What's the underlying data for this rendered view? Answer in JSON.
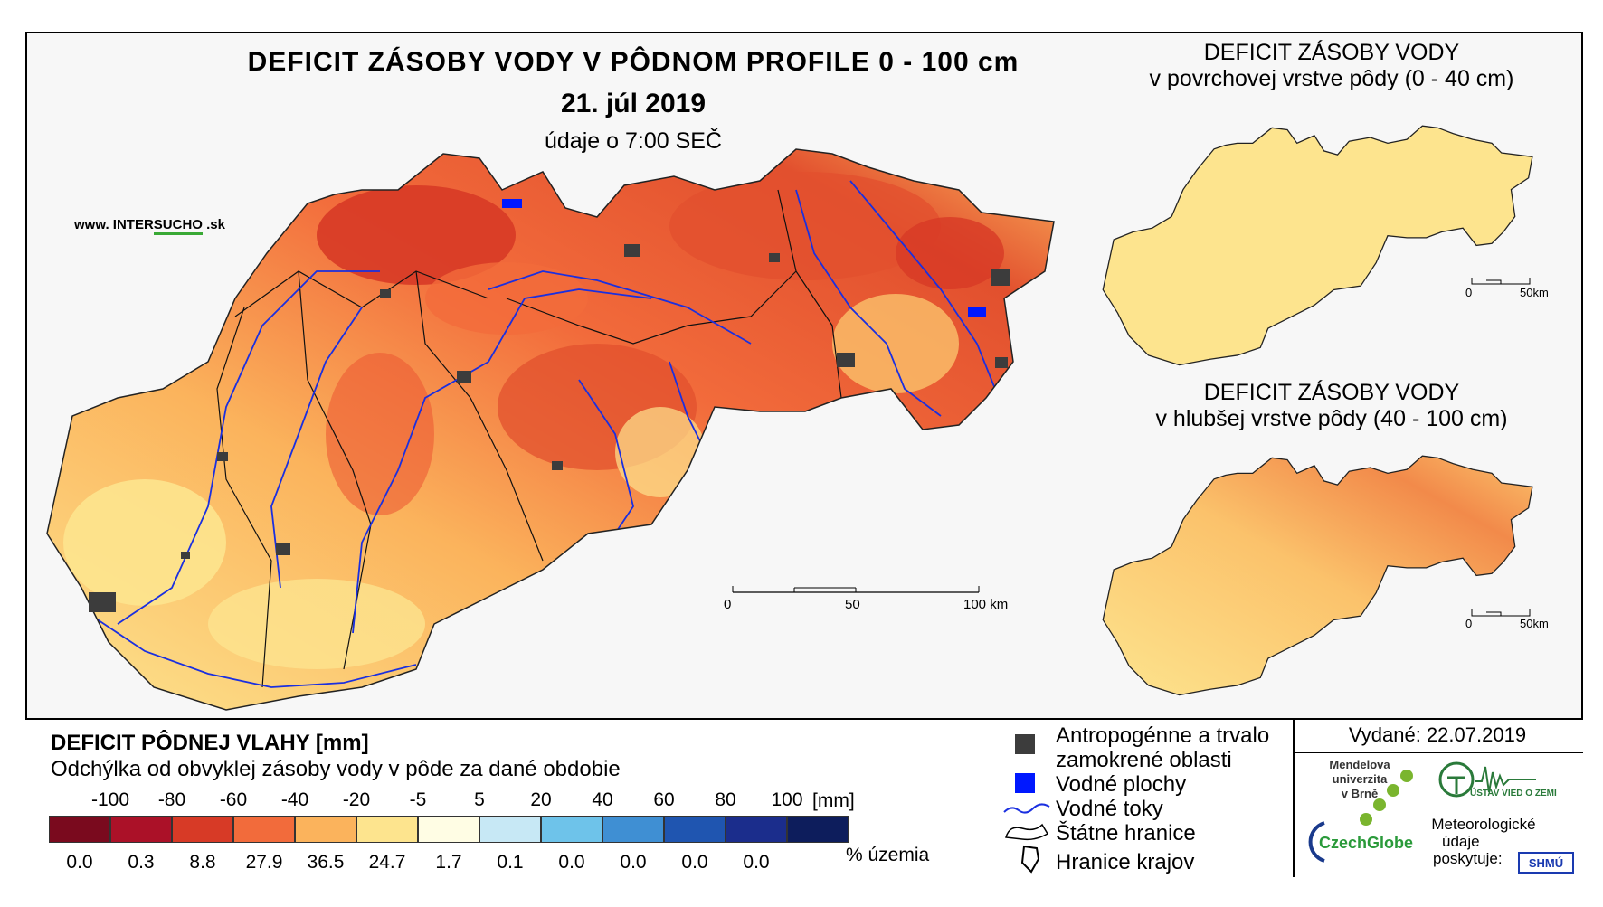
{
  "map": {
    "title": "DEFICIT ZÁSOBY VODY V PÔDNOM PROFILE 0 - 100 cm",
    "date": "21. júl 2019",
    "subtitle": "údaje o 7:00 SEČ",
    "website_prefix": "www. INTER",
    "website_accent": "SUCHO",
    "website_suffix": " .sk",
    "scale": {
      "labels": [
        "0",
        "50",
        "100 km"
      ]
    }
  },
  "insets": [
    {
      "title_line1": "DEFICIT ZÁSOBY VODY",
      "title_line2": "v povrchovej vrstve pôdy (0 - 40 cm)",
      "scale_labels": [
        "0",
        "50km"
      ]
    },
    {
      "title_line1": "DEFICIT ZÁSOBY VODY",
      "title_line2": "v hlubšej vrstve pôdy (40 - 100 cm)",
      "scale_labels": [
        "0",
        "50km"
      ]
    }
  ],
  "legend": {
    "title": "DEFICIT PÔDNEJ VLAHY [mm]",
    "subtitle": "Odchýlka od obvyklej zásoby vody v pôde za dané obdobie",
    "unit": "[mm]",
    "pct_unit": "% územia",
    "boundaries": [
      "-100",
      "-80",
      "-60",
      "-40",
      "-20",
      "-5",
      "5",
      "20",
      "40",
      "60",
      "80",
      "100"
    ],
    "classes": [
      {
        "color": "#7a0a1e",
        "pct": "0.0"
      },
      {
        "color": "#ab1128",
        "pct": "0.3"
      },
      {
        "color": "#d73a26",
        "pct": "8.8"
      },
      {
        "color": "#f26b3b",
        "pct": "27.9"
      },
      {
        "color": "#fbb35c",
        "pct": "36.5"
      },
      {
        "color": "#fde48e",
        "pct": "24.7"
      },
      {
        "color": "#fffde4",
        "pct": "1.7"
      },
      {
        "color": "#c7e8f5",
        "pct": "0.1"
      },
      {
        "color": "#6ec3ea",
        "pct": "0.0"
      },
      {
        "color": "#3f8fd3",
        "pct": "0.0"
      },
      {
        "color": "#1f55b0",
        "pct": "0.0"
      },
      {
        "color": "#1b2d8c",
        "pct": "0.0"
      },
      {
        "color": "#0d1d5c",
        "pct": ""
      }
    ]
  },
  "symbols": {
    "urban": "Antropogénne a trvalo",
    "urban2": "zamokrené oblasti",
    "water": "Vodné plochy",
    "rivers": "Vodné toky",
    "state_border": "Štátne hranice",
    "region_border": "Hranice krajov"
  },
  "info": {
    "issued": "Vydané: 22.07.2019",
    "mendel1": "Mendelova",
    "mendel2": "univerzita",
    "mendel3": "v Brně",
    "czechglobe": "CzechGlobe",
    "uvz": "ÚSTAV VIED O ZEMI",
    "met1": "Meteorologické",
    "met2": "údaje",
    "met3": "poskytuje:",
    "shmu": "SHMÚ"
  },
  "colors": {
    "river": "#1a2fe0",
    "urban": "#3c3c3c",
    "water": "#0018ff",
    "border": "#000000"
  }
}
